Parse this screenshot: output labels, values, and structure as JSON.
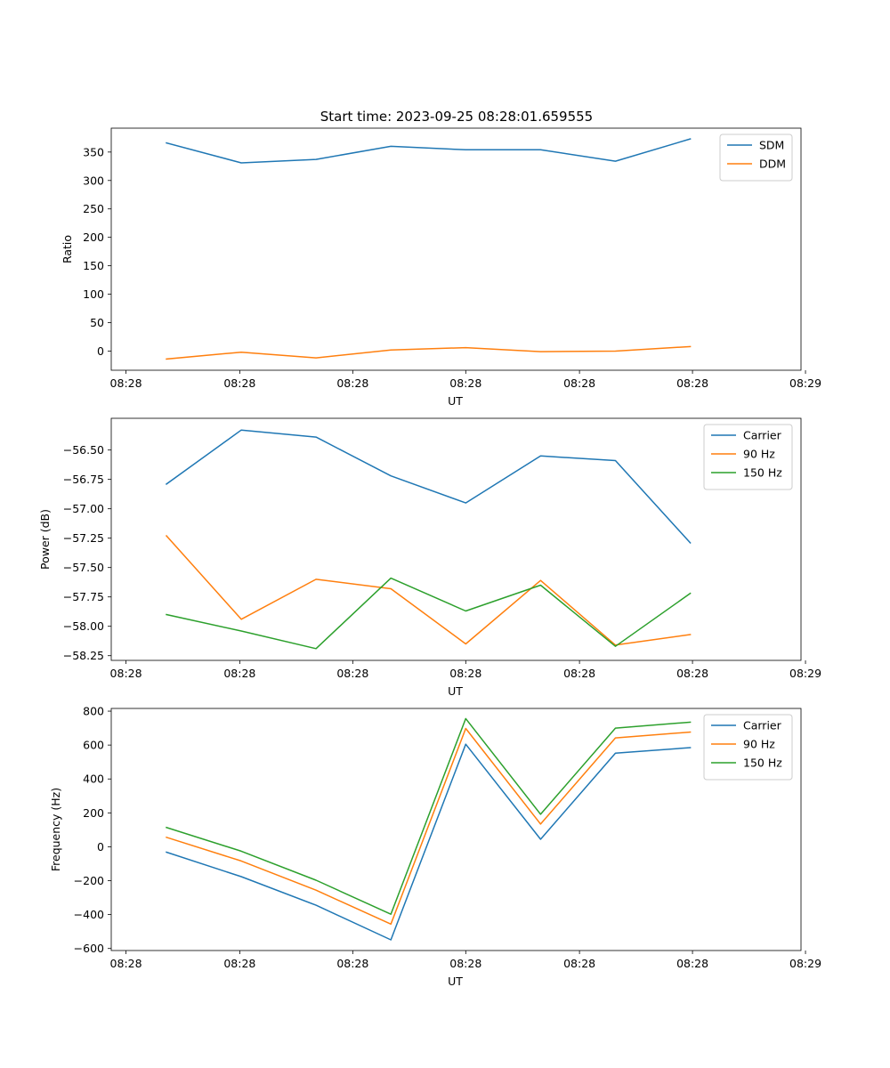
{
  "figure_title": "Start time: 2023-09-25 08:28:01.659555",
  "chart_data": [
    {
      "type": "line",
      "title": "Start time: 2023-09-25 08:28:01.659555",
      "xlabel": "UT",
      "ylabel": "Ratio",
      "x": [
        1,
        2,
        3,
        4,
        5,
        6,
        7,
        8
      ],
      "xlim": [
        0.263,
        9.48
      ],
      "x_ticks": [
        0.46,
        1.98,
        3.49,
        5.0,
        6.52,
        8.03,
        9.54
      ],
      "x_tick_labels": [
        "08:28",
        "08:28",
        "08:28",
        "08:28",
        "08:28",
        "08:28",
        "08:29"
      ],
      "ylim": [
        -33.7,
        392.0
      ],
      "y_ticks": [
        0,
        50,
        100,
        150,
        200,
        250,
        300,
        350
      ],
      "y_tick_labels": [
        "0",
        "50",
        "100",
        "150",
        "200",
        "250",
        "300",
        "350"
      ],
      "legend": "top-right",
      "series": [
        {
          "name": "SDM",
          "color": "#1f77b4",
          "values": [
            366,
            331,
            337,
            360,
            354,
            354,
            334,
            373
          ]
        },
        {
          "name": "DDM",
          "color": "#ff7f0e",
          "values": [
            -14,
            -2,
            -12,
            2,
            6,
            -1,
            0,
            8
          ]
        }
      ]
    },
    {
      "type": "line",
      "title": "",
      "xlabel": "UT",
      "ylabel": "Power (dB)",
      "x": [
        1,
        2,
        3,
        4,
        5,
        6,
        7,
        8
      ],
      "xlim": [
        0.263,
        9.48
      ],
      "x_ticks": [
        0.46,
        1.98,
        3.49,
        5.0,
        6.52,
        8.03,
        9.54
      ],
      "x_tick_labels": [
        "08:28",
        "08:28",
        "08:28",
        "08:28",
        "08:28",
        "08:28",
        "08:29"
      ],
      "ylim": [
        -58.29,
        -56.23
      ],
      "y_ticks": [
        -58.25,
        -58.0,
        -57.75,
        -57.5,
        -57.25,
        -57.0,
        -56.75,
        -56.5
      ],
      "y_tick_labels": [
        "−58.25",
        "−58.00",
        "−57.75",
        "−57.50",
        "−57.25",
        "−57.00",
        "−56.75",
        "−56.50"
      ],
      "legend": "top-right",
      "series": [
        {
          "name": "Carrier",
          "color": "#1f77b4",
          "values": [
            -56.79,
            -56.33,
            -56.39,
            -56.72,
            -56.95,
            -56.55,
            -56.59,
            -57.29
          ]
        },
        {
          "name": "90 Hz",
          "color": "#ff7f0e",
          "values": [
            -57.23,
            -57.94,
            -57.6,
            -57.68,
            -58.15,
            -57.61,
            -58.16,
            -58.07
          ]
        },
        {
          "name": "150 Hz",
          "color": "#2ca02c",
          "values": [
            -57.9,
            -58.04,
            -58.19,
            -57.59,
            -57.87,
            -57.65,
            -58.17,
            -57.72
          ]
        }
      ]
    },
    {
      "type": "line",
      "title": "",
      "xlabel": "UT",
      "ylabel": "Frequency (Hz)",
      "x": [
        1,
        2,
        3,
        4,
        5,
        6,
        7,
        8
      ],
      "xlim": [
        0.263,
        9.48
      ],
      "x_ticks": [
        0.46,
        1.98,
        3.49,
        5.0,
        6.52,
        8.03,
        9.54
      ],
      "x_tick_labels": [
        "08:28",
        "08:28",
        "08:28",
        "08:28",
        "08:28",
        "08:28",
        "08:29"
      ],
      "ylim": [
        -612,
        816
      ],
      "y_ticks": [
        -600,
        -400,
        -200,
        0,
        200,
        400,
        600,
        800
      ],
      "y_tick_labels": [
        "−600",
        "−400",
        "−200",
        "0",
        "200",
        "400",
        "600",
        "800"
      ],
      "legend": "top-right",
      "series": [
        {
          "name": "Carrier",
          "color": "#1f77b4",
          "values": [
            -32,
            -176,
            -345,
            -549,
            605,
            44,
            552,
            585
          ]
        },
        {
          "name": "90 Hz",
          "color": "#ff7f0e",
          "values": [
            56,
            -84,
            -256,
            -456,
            698,
            134,
            642,
            677
          ]
        },
        {
          "name": "150 Hz",
          "color": "#2ca02c",
          "values": [
            114,
            -26,
            -197,
            -398,
            756,
            192,
            700,
            735
          ]
        }
      ]
    }
  ]
}
